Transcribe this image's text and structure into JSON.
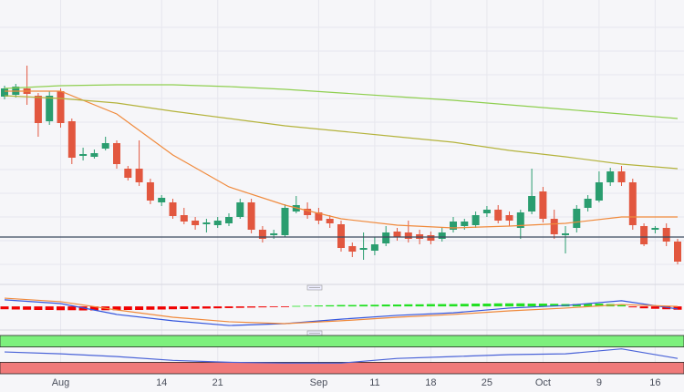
{
  "chart_data": [
    {
      "type": "candlestick",
      "categories": [
        null,
        null,
        null,
        null,
        null,
        "Aug",
        null,
        null,
        null,
        null,
        null,
        null,
        null,
        null,
        "14",
        null,
        null,
        null,
        null,
        "21",
        null,
        null,
        null,
        null,
        null,
        null,
        null,
        null,
        "Sep",
        null,
        null,
        null,
        null,
        "11",
        null,
        null,
        null,
        null,
        "18",
        null,
        null,
        null,
        null,
        "25",
        null,
        null,
        null,
        null,
        "Oct",
        null,
        null,
        null,
        null,
        "9",
        null,
        null,
        null,
        null,
        "16",
        null,
        null
      ],
      "open": [
        194,
        196,
        203,
        195,
        167,
        200,
        167,
        129,
        128,
        137,
        143,
        115,
        115,
        100,
        78,
        78,
        64,
        58,
        54,
        53,
        55,
        62,
        78,
        48,
        42,
        42,
        68,
        71,
        67,
        60,
        54,
        30,
        26,
        25,
        33,
        46,
        45,
        43,
        42,
        38,
        48,
        52,
        53,
        66,
        70,
        64,
        50,
        68,
        90,
        60,
        42,
        50,
        72,
        80,
        100,
        112,
        100,
        52,
        48,
        50,
        35
      ],
      "high": [
        206,
        208,
        228,
        198,
        200,
        203,
        170,
        138,
        136,
        150,
        146,
        118,
        146,
        104,
        86,
        82,
        72,
        62,
        60,
        62,
        66,
        82,
        82,
        52,
        48,
        76,
        85,
        78,
        72,
        64,
        58,
        34,
        45,
        40,
        52,
        50,
        58,
        48,
        46,
        50,
        62,
        60,
        68,
        74,
        75,
        68,
        70,
        115,
        95,
        70,
        52,
        75,
        86,
        112,
        116,
        118,
        104,
        55,
        52,
        55,
        38
      ],
      "low": [
        191,
        193,
        185,
        150,
        163,
        160,
        120,
        124,
        126,
        135,
        115,
        102,
        96,
        76,
        74,
        60,
        54,
        48,
        45,
        50,
        52,
        60,
        44,
        34,
        38,
        40,
        66,
        60,
        54,
        50,
        24,
        18,
        15,
        20,
        30,
        36,
        34,
        32,
        32,
        35,
        45,
        48,
        50,
        62,
        55,
        52,
        38,
        65,
        56,
        38,
        22,
        45,
        68,
        78,
        96,
        96,
        48,
        30,
        44,
        30,
        10
      ],
      "close": [
        203,
        205,
        197,
        165,
        195,
        165,
        127,
        131,
        132,
        143,
        120,
        105,
        100,
        80,
        83,
        63,
        57,
        53,
        56,
        58,
        62,
        78,
        48,
        38,
        44,
        72,
        75,
        64,
        58,
        55,
        28,
        24,
        28,
        32,
        45,
        40,
        38,
        38,
        36,
        45,
        57,
        57,
        64,
        70,
        58,
        58,
        67,
        85,
        60,
        43,
        44,
        71,
        82,
        100,
        112,
        100,
        53,
        32,
        50,
        35,
        13
      ],
      "up_color": "#2a9d6f",
      "down_color": "#e2573f",
      "ylim": [
        10,
        300
      ],
      "price_line": 40,
      "price_line_color": "#3b4a5e",
      "lines": [
        {
          "color": "#f08a3c",
          "x": [
            0,
            5,
            10,
            15,
            20,
            25,
            30,
            35,
            40,
            45,
            50,
            55,
            60
          ],
          "values": [
            200,
            200,
            175,
            130,
            95,
            75,
            60,
            53,
            50,
            52,
            55,
            62,
            62
          ]
        },
        {
          "color": "#b4b33c",
          "x": [
            0,
            5,
            10,
            15,
            20,
            25,
            30,
            35,
            40,
            45,
            50,
            55,
            60
          ],
          "values": [
            195,
            192,
            187,
            178,
            170,
            162,
            156,
            150,
            144,
            135,
            128,
            120,
            115
          ]
        },
        {
          "color": "#8fcf50",
          "x": [
            0,
            5,
            10,
            15,
            20,
            25,
            30,
            35,
            40,
            45,
            50,
            55,
            60
          ],
          "values": [
            203,
            206,
            207,
            207,
            205,
            202,
            198,
            194,
            190,
            185,
            180,
            175,
            170
          ]
        }
      ]
    },
    {
      "type": "macd",
      "histogram": [
        -1.2,
        -1.3,
        -1.4,
        -1.5,
        -1.5,
        -1.6,
        -1.6,
        -1.7,
        -1.7,
        -1.6,
        -1.6,
        -1.5,
        -1.5,
        -1.4,
        -1.3,
        -1.2,
        -1.1,
        -1,
        -0.9,
        -0.8,
        -0.7,
        -0.6,
        -0.5,
        -0.4,
        -0.3,
        -0.2,
        0.2,
        0.3,
        0.4,
        0.5,
        0.6,
        0.6,
        0.7,
        0.7,
        0.8,
        0.8,
        0.9,
        0.9,
        1,
        1,
        1,
        1.1,
        1.2,
        1.2,
        1.3,
        1.3,
        1.3,
        1.2,
        1.2,
        1.1,
        1,
        1,
        1.1,
        1.2,
        1,
        0.6,
        -0.4,
        -0.8,
        -1,
        -1.2,
        -1.4
      ],
      "up_color": "#22e022",
      "down_color": "#f00000",
      "ylim": [
        -10,
        7
      ],
      "lines": [
        {
          "color": "#3355dd",
          "x": [
            0,
            5,
            10,
            15,
            20,
            25,
            30,
            35,
            40,
            45,
            50,
            55,
            60
          ],
          "values": [
            2.8,
            1.2,
            -3.4,
            -6.1,
            -8.1,
            -7.3,
            -5.4,
            -3.8,
            -2.7,
            -0.7,
            0.4,
            2.4,
            -1.1
          ]
        },
        {
          "color": "#f08a3c",
          "x": [
            0,
            5,
            10,
            15,
            20,
            25,
            30,
            35,
            40,
            45,
            50,
            55,
            60
          ],
          "values": [
            3.5,
            2,
            -1.5,
            -4.6,
            -6.5,
            -7.3,
            -6.1,
            -4.6,
            -3.4,
            -1.9,
            -0.7,
            0.8,
            0
          ]
        }
      ]
    },
    {
      "type": "rsi",
      "ylim": [
        0,
        100
      ],
      "overbought": 70,
      "oversold": 30,
      "overbought_color": "#7df07d",
      "oversold_color": "#f07a7a",
      "lines": [
        {
          "color": "#4a63d8",
          "x": [
            0,
            5,
            10,
            15,
            20,
            25,
            30,
            35,
            40,
            45,
            50,
            55,
            60
          ],
          "values": [
            57,
            52,
            45,
            35,
            30,
            28,
            28,
            40,
            45,
            50,
            52,
            65,
            40
          ]
        }
      ]
    }
  ]
}
